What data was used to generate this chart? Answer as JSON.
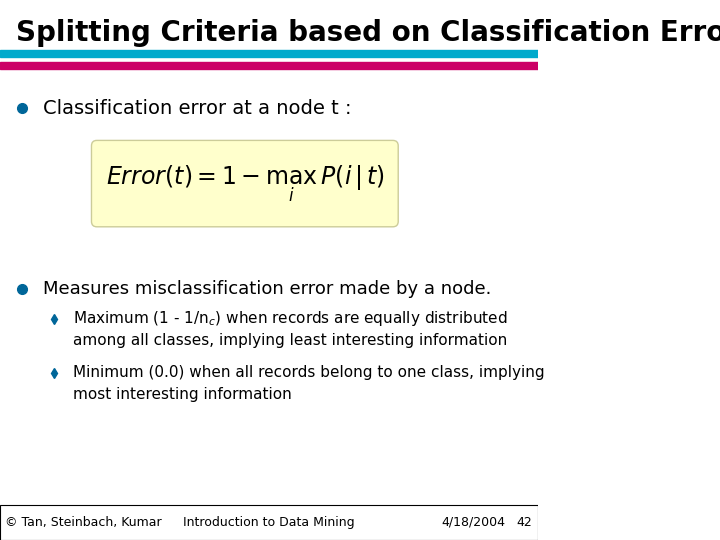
{
  "title": "Splitting Criteria based on Classification Error",
  "title_fontsize": 20,
  "title_fontweight": "bold",
  "bg_color": "#ffffff",
  "header_bar_color1": "#00aacc",
  "header_bar_color2": "#cc0066",
  "bullet_color": "#006699",
  "diamond_color": "#006699",
  "formula_bg": "#ffffcc",
  "bullet1_text": "Classification error at a node t :",
  "bullet2_text": "Measures misclassification error made by a node.",
  "sub1_line1": "Maximum (1 - 1/n$_c$) when records are equally distributed",
  "sub1_line2": "among all classes, implying least interesting information",
  "sub2_line1": "Minimum (0.0) when all records belong to one class, implying",
  "sub2_line2": "most interesting information",
  "footer_left": "© Tan, Steinbach, Kumar",
  "footer_center": "Introduction to Data Mining",
  "footer_right": "4/18/2004",
  "footer_page": "42",
  "footer_fontsize": 9
}
